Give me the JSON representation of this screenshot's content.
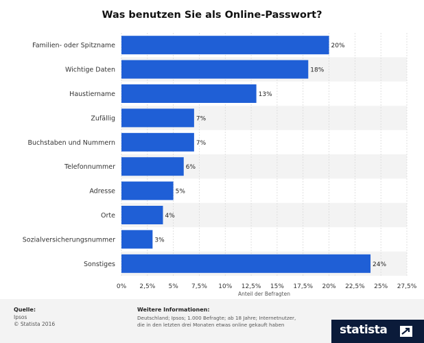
{
  "chart_data": {
    "type": "bar",
    "orientation": "horizontal",
    "title": "Was benutzen Sie als Online-Passwort?",
    "xlabel": "Anteil der Befragten",
    "ylabel": "",
    "categories": [
      "Familien- oder Spitzname",
      "Wichtige Daten",
      "Haustiername",
      "Zufällig",
      "Buchstaben und Nummern",
      "Telefonnummer",
      "Adresse",
      "Orte",
      "Sozialversicherungsnummer",
      "Sonstiges"
    ],
    "values": [
      20,
      18,
      13,
      7,
      7,
      6,
      5,
      4,
      3,
      24
    ],
    "value_labels": [
      "20%",
      "18%",
      "13%",
      "7%",
      "7%",
      "6%",
      "5%",
      "4%",
      "3%",
      "24%"
    ],
    "xlim": [
      0,
      27.5
    ],
    "xticks": [
      0,
      2.5,
      5,
      7.5,
      10,
      12.5,
      15,
      17.5,
      20,
      22.5,
      25,
      27.5
    ],
    "xtick_labels": [
      "0%",
      "2,5%",
      "5%",
      "7,5%",
      "10%",
      "12,5%",
      "15%",
      "17,5%",
      "20%",
      "22,5%",
      "25%",
      "27,5%"
    ],
    "grid": true,
    "legend": "none",
    "bar_color": "#1f5fd6",
    "band_color": "#f3f3f3"
  },
  "footer": {
    "source_heading": "Quelle:",
    "source_lines": [
      "Ipsos",
      "© Statista 2016"
    ],
    "info_heading": "Weitere Informationen:",
    "info_lines": [
      "Deutschland; Ipsos; 1.000 Befragte; ab 18 Jahre; Internetnutzer,",
      "die in den letzten drei Monaten etwas online gekauft haben"
    ],
    "brand": "statista"
  }
}
